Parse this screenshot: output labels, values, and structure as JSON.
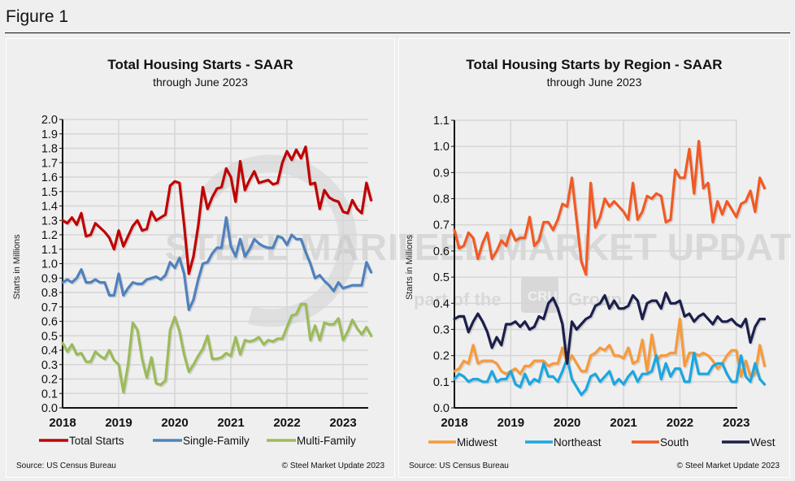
{
  "figure_title": "Figure 1",
  "chart_data": [
    {
      "type": "line",
      "title": "Total Housing Starts - SAAR",
      "subtitle": "through June 2023",
      "xlabel": "",
      "ylabel": "Starts in Millions",
      "ylim": [
        0.0,
        2.0
      ],
      "ytick_step": 0.1,
      "yticks": [
        "0.0",
        "0.1",
        "0.2",
        "0.3",
        "0.4",
        "0.5",
        "0.6",
        "0.7",
        "0.8",
        "0.9",
        "1.0",
        "1.1",
        "1.2",
        "1.3",
        "1.4",
        "1.5",
        "1.6",
        "1.7",
        "1.8",
        "1.9",
        "2.0"
      ],
      "xticks": [
        "2018",
        "2019",
        "2020",
        "2021",
        "2022",
        "2023"
      ],
      "x_start": "2018-01",
      "x_end": "2023-06",
      "grid": true,
      "legend_position": "bottom",
      "source": "Source: US Census Bureau",
      "copyright": "© Steel Market Update 2023",
      "watermark": "STEEL MARKET UPDATE",
      "series": [
        {
          "name": "Total Starts",
          "color": "#c00000",
          "values": [
            1.3,
            1.28,
            1.32,
            1.27,
            1.35,
            1.19,
            1.2,
            1.28,
            1.25,
            1.22,
            1.18,
            1.1,
            1.23,
            1.12,
            1.19,
            1.26,
            1.3,
            1.23,
            1.24,
            1.36,
            1.3,
            1.32,
            1.34,
            1.54,
            1.57,
            1.56,
            1.27,
            0.93,
            1.05,
            1.26,
            1.53,
            1.38,
            1.46,
            1.52,
            1.53,
            1.66,
            1.6,
            1.43,
            1.71,
            1.51,
            1.58,
            1.64,
            1.56,
            1.57,
            1.58,
            1.55,
            1.56,
            1.7,
            1.78,
            1.72,
            1.79,
            1.73,
            1.81,
            1.55,
            1.56,
            1.38,
            1.51,
            1.46,
            1.44,
            1.43,
            1.36,
            1.35,
            1.44,
            1.38,
            1.35,
            1.56,
            1.44
          ]
        },
        {
          "name": "Single-Family",
          "color": "#4f81bd",
          "values": [
            0.87,
            0.89,
            0.87,
            0.9,
            0.96,
            0.87,
            0.87,
            0.89,
            0.87,
            0.87,
            0.78,
            0.78,
            0.93,
            0.78,
            0.83,
            0.87,
            0.86,
            0.86,
            0.89,
            0.9,
            0.91,
            0.89,
            0.92,
            1.01,
            0.97,
            1.04,
            0.93,
            0.68,
            0.75,
            0.89,
            1.0,
            1.01,
            1.07,
            1.11,
            1.11,
            1.32,
            1.12,
            1.05,
            1.17,
            1.05,
            1.1,
            1.17,
            1.14,
            1.12,
            1.11,
            1.11,
            1.19,
            1.18,
            1.13,
            1.2,
            1.17,
            1.17,
            1.08,
            1.0,
            0.9,
            0.92,
            0.88,
            0.85,
            0.81,
            0.87,
            0.83,
            0.84,
            0.85,
            0.85,
            0.85,
            1.01,
            0.94
          ]
        },
        {
          "name": "Multi-Family",
          "color": "#9bbb59",
          "values": [
            0.45,
            0.39,
            0.44,
            0.37,
            0.38,
            0.32,
            0.32,
            0.39,
            0.36,
            0.34,
            0.4,
            0.33,
            0.3,
            0.11,
            0.3,
            0.59,
            0.54,
            0.34,
            0.21,
            0.35,
            0.17,
            0.16,
            0.19,
            0.54,
            0.63,
            0.53,
            0.37,
            0.25,
            0.3,
            0.36,
            0.41,
            0.5,
            0.34,
            0.34,
            0.35,
            0.38,
            0.36,
            0.49,
            0.37,
            0.47,
            0.46,
            0.47,
            0.49,
            0.44,
            0.47,
            0.46,
            0.48,
            0.48,
            0.56,
            0.64,
            0.65,
            0.72,
            0.72,
            0.47,
            0.57,
            0.47,
            0.59,
            0.58,
            0.58,
            0.62,
            0.47,
            0.53,
            0.61,
            0.55,
            0.51,
            0.56,
            0.5
          ]
        }
      ]
    },
    {
      "type": "line",
      "title": "Total Housing Starts by Region - SAAR",
      "subtitle": "through June 2023",
      "xlabel": "",
      "ylabel": "Starts in Millions",
      "ylim": [
        0.0,
        1.1
      ],
      "ytick_step": 0.1,
      "yticks": [
        "0.0",
        "0.1",
        "0.2",
        "0.3",
        "0.4",
        "0.5",
        "0.6",
        "0.7",
        "0.8",
        "0.9",
        "1.0",
        "1.1"
      ],
      "xticks": [
        "2018",
        "2019",
        "2020",
        "2021",
        "2022",
        "2023"
      ],
      "x_start": "2018-01",
      "x_end": "2023-06",
      "grid": true,
      "legend_position": "bottom",
      "source": "Source: US Census Bureau",
      "copyright": "© Steel Market Update 2023",
      "watermark": "STEEL MARKET UPDATE",
      "watermark_line2": "part of the",
      "watermark_logo": "CRU",
      "watermark_line3": "Group",
      "series": [
        {
          "name": "Midwest",
          "color": "#f79a3b",
          "values": [
            0.14,
            0.15,
            0.18,
            0.17,
            0.24,
            0.17,
            0.18,
            0.18,
            0.18,
            0.17,
            0.14,
            0.13,
            0.14,
            0.15,
            0.13,
            0.16,
            0.16,
            0.18,
            0.18,
            0.18,
            0.16,
            0.17,
            0.17,
            0.23,
            0.17,
            0.2,
            0.17,
            0.14,
            0.14,
            0.2,
            0.21,
            0.23,
            0.22,
            0.24,
            0.2,
            0.2,
            0.19,
            0.23,
            0.17,
            0.18,
            0.26,
            0.14,
            0.28,
            0.18,
            0.2,
            0.2,
            0.21,
            0.21,
            0.34,
            0.16,
            0.21,
            0.21,
            0.2,
            0.21,
            0.2,
            0.18,
            0.15,
            0.17,
            0.2,
            0.22,
            0.22,
            0.12,
            0.18,
            0.12,
            0.13,
            0.24,
            0.16
          ]
        },
        {
          "name": "Northeast",
          "color": "#1aa7e0",
          "values": [
            0.11,
            0.13,
            0.12,
            0.1,
            0.11,
            0.11,
            0.1,
            0.1,
            0.14,
            0.1,
            0.11,
            0.11,
            0.14,
            0.09,
            0.08,
            0.13,
            0.09,
            0.11,
            0.1,
            0.17,
            0.12,
            0.12,
            0.1,
            0.14,
            0.19,
            0.11,
            0.08,
            0.05,
            0.07,
            0.12,
            0.13,
            0.1,
            0.12,
            0.14,
            0.09,
            0.11,
            0.09,
            0.12,
            0.14,
            0.1,
            0.13,
            0.13,
            0.14,
            0.2,
            0.11,
            0.17,
            0.12,
            0.15,
            0.15,
            0.1,
            0.1,
            0.21,
            0.13,
            0.13,
            0.13,
            0.16,
            0.17,
            0.17,
            0.13,
            0.1,
            0.1,
            0.2,
            0.12,
            0.1,
            0.17,
            0.11,
            0.09
          ]
        },
        {
          "name": "South",
          "color": "#f15a24",
          "values": [
            0.68,
            0.61,
            0.62,
            0.67,
            0.65,
            0.57,
            0.63,
            0.67,
            0.57,
            0.6,
            0.64,
            0.62,
            0.68,
            0.64,
            0.65,
            0.65,
            0.73,
            0.62,
            0.64,
            0.71,
            0.71,
            0.68,
            0.72,
            0.78,
            0.77,
            0.88,
            0.72,
            0.56,
            0.51,
            0.86,
            0.69,
            0.73,
            0.8,
            0.77,
            0.79,
            0.77,
            0.75,
            0.72,
            0.86,
            0.72,
            0.75,
            0.81,
            0.8,
            0.82,
            0.81,
            0.71,
            0.72,
            0.91,
            0.88,
            0.88,
            0.99,
            0.82,
            1.02,
            0.84,
            0.86,
            0.71,
            0.79,
            0.74,
            0.79,
            0.76,
            0.73,
            0.78,
            0.79,
            0.83,
            0.75,
            0.88,
            0.84
          ]
        },
        {
          "name": "West",
          "color": "#1b1f4b",
          "values": [
            0.34,
            0.35,
            0.35,
            0.29,
            0.33,
            0.36,
            0.33,
            0.29,
            0.23,
            0.27,
            0.24,
            0.32,
            0.32,
            0.33,
            0.31,
            0.33,
            0.3,
            0.31,
            0.35,
            0.34,
            0.4,
            0.42,
            0.38,
            0.32,
            0.17,
            0.33,
            0.3,
            0.32,
            0.34,
            0.35,
            0.39,
            0.4,
            0.43,
            0.38,
            0.41,
            0.38,
            0.38,
            0.39,
            0.43,
            0.41,
            0.34,
            0.4,
            0.41,
            0.41,
            0.38,
            0.44,
            0.4,
            0.4,
            0.41,
            0.35,
            0.36,
            0.33,
            0.35,
            0.36,
            0.34,
            0.32,
            0.35,
            0.33,
            0.33,
            0.34,
            0.32,
            0.31,
            0.34,
            0.25,
            0.31,
            0.34,
            0.34
          ]
        }
      ]
    }
  ]
}
